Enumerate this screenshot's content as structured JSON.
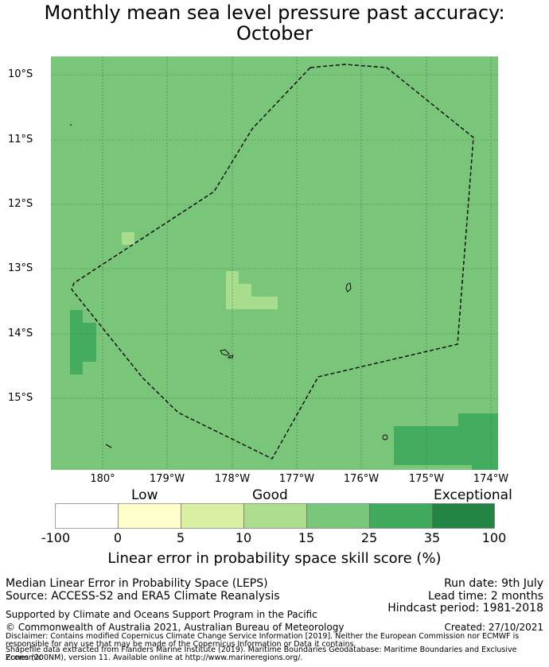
{
  "title_line1": "Monthly mean sea level pressure past accuracy:",
  "title_line2": "October",
  "map": {
    "lat_labels": [
      "10°S",
      "11°S",
      "12°S",
      "13°S",
      "14°S",
      "15°S"
    ],
    "lon_labels": [
      "180°",
      "179°W",
      "178°W",
      "177°W",
      "176°W",
      "175°W",
      "174°W"
    ],
    "background_color": "#79c67b",
    "boundary": "dashed"
  },
  "colorbar": {
    "categories": [
      "Low",
      "Good",
      "Exceptional"
    ],
    "ticks": [
      "-100",
      "0",
      "5",
      "10",
      "15",
      "25",
      "35",
      "100"
    ],
    "colors": [
      "#ffffff",
      "#ffffcc",
      "#d9f0a3",
      "#addd8e",
      "#78c679",
      "#41ab5d",
      "#238443"
    ],
    "title": "Linear error in probability space skill score (%)"
  },
  "info": {
    "line1": "Median Linear Error in Probability Space (LEPS)",
    "line2": "Source: ACCESS-S2 and ERA5 Climate Reanalysis",
    "run_date": "Run date: 9th July",
    "lead_time": "Lead time: 2 months",
    "hindcast": "Hindcast period: 1981-2018",
    "supported": "Supported by Climate and Oceans Support Program in the Pacific",
    "copyright": "© Commonwealth of Australia 2021, Australian Bureau of Meteorology",
    "created": "Created: 27/10/2021",
    "disclaimer1": "Disclaimer: Contains modified Copernicus Climate Change Service Information [2019]. Neither the European Commission nor ECMWF is",
    "disclaimer2": "responsible for any use that may be made of the Copernicus Information or Data it contains.",
    "disclaimer3": "Shapefile data extracted from Flanders Marine Institute (2019). Maritime Boundaries Geodatabase: Maritime Boundaries and Exclusive Economic",
    "disclaimer4": "Zones (200NM), version 11. Available online at http://www.marineregions.org/."
  }
}
